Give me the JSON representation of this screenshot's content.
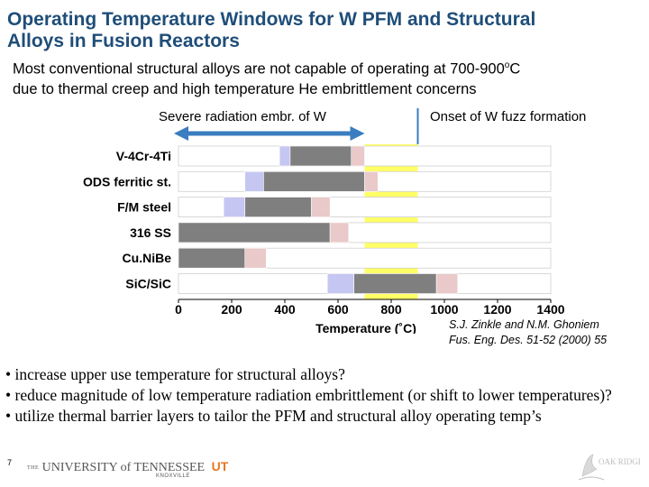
{
  "title": {
    "line1": "Operating Temperature Windows for W PFM and Structural",
    "line2": "Alloys in Fusion Reactors"
  },
  "subtitle": {
    "line1_pre": "Most conventional structural alloys are not capable of operating at 700-900",
    "line1_sup": "o",
    "line1_post": "C",
    "line2": "due to thermal creep and high temperature He embrittlement concerns"
  },
  "annotations": {
    "left": "Severe radiation embr. of W",
    "right": "Onset of W fuzz formation"
  },
  "chart_data": {
    "type": "bar",
    "xlabel": "Temperature (˚C)",
    "xlim": [
      0,
      1400
    ],
    "xticks": [
      0,
      200,
      400,
      600,
      800,
      1000,
      1200,
      1400
    ],
    "categories": [
      "V-4Cr-4Ti",
      "ODS ferritic st.",
      "F/M steel",
      "316 SS",
      "Cu.NiBe",
      "SiC/SiC"
    ],
    "series": [
      {
        "segments": [
          {
            "category": "V-4Cr-4Ti",
            "role": "blue",
            "start": 380,
            "end": 420
          },
          {
            "category": "V-4Cr-4Ti",
            "role": "gray",
            "start": 420,
            "end": 650
          },
          {
            "category": "V-4Cr-4Ti",
            "role": "pink",
            "start": 650,
            "end": 700
          },
          {
            "category": "ODS ferritic st.",
            "role": "blue",
            "start": 250,
            "end": 320
          },
          {
            "category": "ODS ferritic st.",
            "role": "gray",
            "start": 320,
            "end": 700
          },
          {
            "category": "ODS ferritic st.",
            "role": "pink",
            "start": 700,
            "end": 750
          },
          {
            "category": "F/M steel",
            "role": "blue",
            "start": 170,
            "end": 250
          },
          {
            "category": "F/M steel",
            "role": "gray",
            "start": 250,
            "end": 500
          },
          {
            "category": "F/M steel",
            "role": "pink",
            "start": 500,
            "end": 570
          },
          {
            "category": "316 SS",
            "role": "gray",
            "start": 0,
            "end": 570
          },
          {
            "category": "316 SS",
            "role": "pink",
            "start": 570,
            "end": 640
          },
          {
            "category": "Cu.NiBe",
            "role": "gray",
            "start": 0,
            "end": 250
          },
          {
            "category": "Cu.NiBe",
            "role": "pink",
            "start": 250,
            "end": 330
          },
          {
            "category": "SiC/SiC",
            "role": "blue",
            "start": 560,
            "end": 660
          },
          {
            "category": "SiC/SiC",
            "role": "gray",
            "start": 660,
            "end": 970
          },
          {
            "category": "SiC/SiC",
            "role": "pink",
            "start": 970,
            "end": 1050
          }
        ]
      }
    ],
    "highlight_band": {
      "start": 700,
      "end": 900,
      "color": "#ffff66"
    },
    "arrow": {
      "start": 0,
      "end": 700
    },
    "onset_line": 900,
    "colors": {
      "blue": "#c6c6f2",
      "gray": "#7f7f7f",
      "pink": "#e9c9c9",
      "arrow": "#3a7dc0",
      "line": "#3a7dc0"
    },
    "grid": false
  },
  "citation": {
    "line1": "S.J. Zinkle and N.M. Ghoniem",
    "line2": "Fus. Eng. Des. 51-52 (2000) 55"
  },
  "bullets": [
    "• increase upper use temperature for structural alloys?",
    "• reduce magnitude of low temperature radiation embrittlement (or shift to lower temperatures)?",
    "• utilize thermal barrier layers to tailor the PFM and structural alloy operating temp’s"
  ],
  "footer": {
    "page_number": "7",
    "utk_the": "THE",
    "utk_name": "UNIVERSITY of TENNESSEE",
    "utk_monogram": "UT",
    "utk_city": "KNOXVILLE",
    "ornl_text": "OAK RIDGE"
  }
}
